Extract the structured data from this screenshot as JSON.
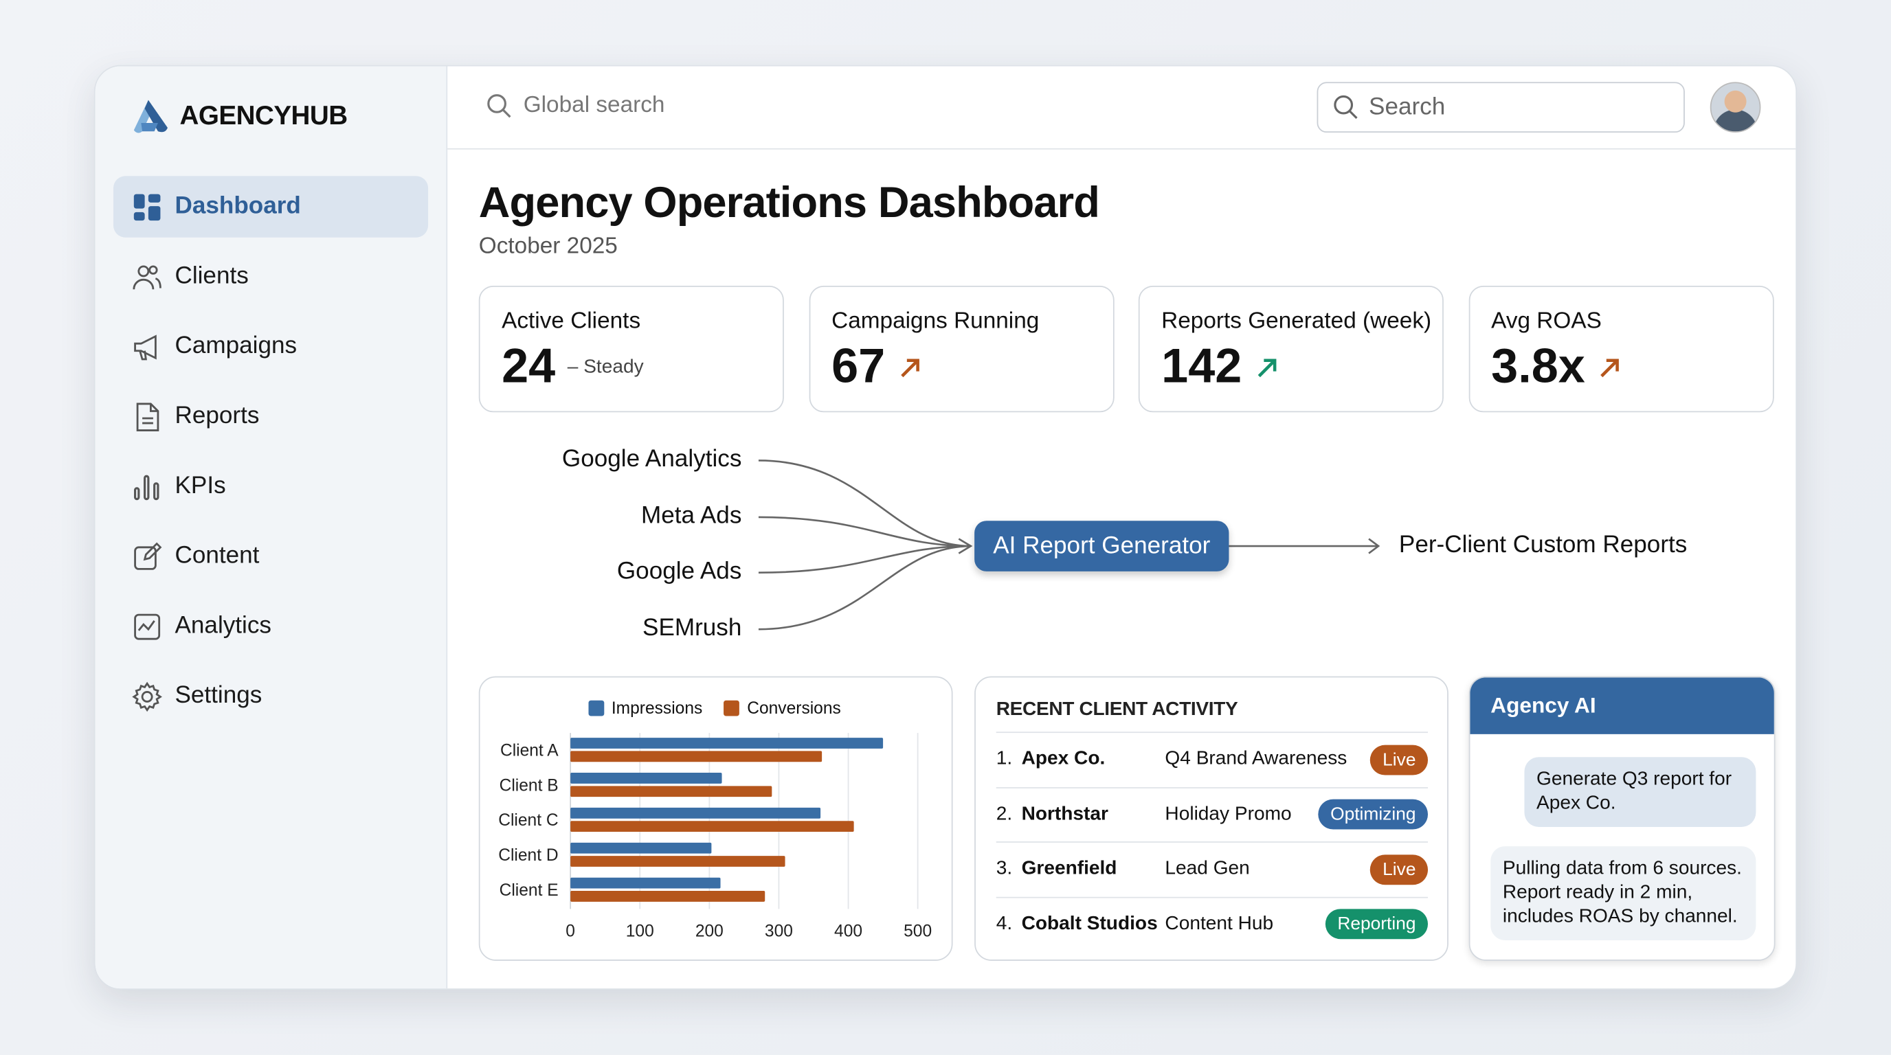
{
  "app": {
    "name": "AGENCYHUB"
  },
  "sidebar": {
    "items": [
      {
        "label": "Dashboard",
        "icon": "dashboard-icon",
        "active": true
      },
      {
        "label": "Clients",
        "icon": "users-icon"
      },
      {
        "label": "Campaigns",
        "icon": "megaphone-icon"
      },
      {
        "label": "Reports",
        "icon": "document-icon"
      },
      {
        "label": "KPIs",
        "icon": "bar-chart-icon"
      },
      {
        "label": "Content",
        "icon": "edit-icon"
      },
      {
        "label": "Analytics",
        "icon": "line-chart-icon"
      },
      {
        "label": "Settings",
        "icon": "gear-icon"
      }
    ]
  },
  "topbar": {
    "global_search_placeholder": "Global search",
    "search_placeholder": "Search"
  },
  "header": {
    "title": "Agency Operations Dashboard",
    "subtitle": "October 2025"
  },
  "kpis": [
    {
      "label": "Active Clients",
      "value": "24",
      "trend": "steady",
      "note": "Steady"
    },
    {
      "label": "Campaigns Running",
      "value": "67",
      "trend": "up",
      "color": "#b5561c"
    },
    {
      "label": "Reports Generated (week)",
      "value": "142",
      "trend": "up",
      "color": "#15916b"
    },
    {
      "label": "Avg ROAS",
      "value": "3.8x",
      "trend": "up",
      "color": "#b5561c"
    }
  ],
  "flow": {
    "sources": [
      "Google Analytics",
      "Meta Ads",
      "Google Ads",
      "SEMrush"
    ],
    "processor": "AI Report Generator",
    "output": "Per-Client Custom Reports"
  },
  "chart_data": {
    "type": "bar",
    "orientation": "horizontal",
    "categories": [
      "Client A",
      "Client B",
      "Client C",
      "Client D",
      "Client E"
    ],
    "series": [
      {
        "name": "Impressions",
        "color": "#3a6ea5",
        "values": [
          450,
          218,
          360,
          203,
          216
        ]
      },
      {
        "name": "Conversions",
        "color": "#b5561c",
        "values": [
          362,
          290,
          408,
          309,
          280
        ]
      }
    ],
    "xlim": [
      0,
      500
    ],
    "xticks": [
      "0",
      "100",
      "200",
      "300",
      "400",
      "500"
    ],
    "grid": true,
    "legend": "top"
  },
  "activity": {
    "title": "RECENT CLIENT ACTIVITY",
    "rows": [
      {
        "num": "1.",
        "client": "Apex Co.",
        "campaign": "Q4 Brand Awareness",
        "status": "Live",
        "color": "#b5561c"
      },
      {
        "num": "2.",
        "client": "Northstar",
        "campaign": "Holiday Promo",
        "status": "Optimizing",
        "color": "#3568a3"
      },
      {
        "num": "3.",
        "client": "Greenfield",
        "campaign": "Lead Gen",
        "status": "Live",
        "color": "#b5561c"
      },
      {
        "num": "4.",
        "client": "Cobalt Studios",
        "campaign": "Content Hub",
        "status": "Reporting",
        "color": "#15916b"
      }
    ]
  },
  "assistant": {
    "title": "Agency AI",
    "user_message": "Generate Q3 report for Apex Co.",
    "ai_message": "Pulling data from 6 sources. Report ready in 2 min, includes ROAS by channel."
  }
}
